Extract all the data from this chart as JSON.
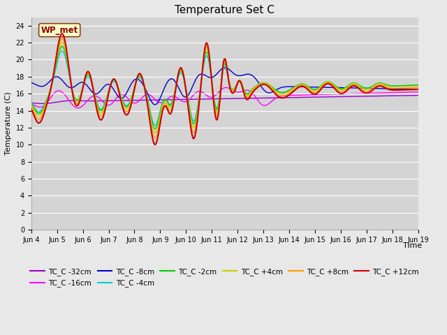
{
  "title": "Temperature Set C",
  "xlabel": "Time",
  "ylabel": "Temperature (C)",
  "ylim": [
    0,
    25
  ],
  "yticks": [
    0,
    2,
    4,
    6,
    8,
    10,
    12,
    14,
    16,
    18,
    20,
    22,
    24
  ],
  "background_color": "#e8e8e8",
  "plot_bg_color": "#d4d4d4",
  "wp_met_label": "WP_met",
  "wp_met_bg": "#ffffcc",
  "wp_met_border": "#8B4513",
  "wp_met_text_color": "#8B0000",
  "series_colors": {
    "TC_C -32cm": "#9900cc",
    "TC_C -16cm": "#ff00ff",
    "TC_C -8cm": "#0000cc",
    "TC_C -4cm": "#00cccc",
    "TC_C -2cm": "#00cc00",
    "TC_C +4cm": "#cccc00",
    "TC_C +8cm": "#ff9900",
    "TC_C +12cm": "#cc0000"
  },
  "num_points": 500,
  "title_fontsize": 11,
  "axis_fontsize": 8,
  "tick_fontsize": 7,
  "legend_fontsize": 7.5
}
